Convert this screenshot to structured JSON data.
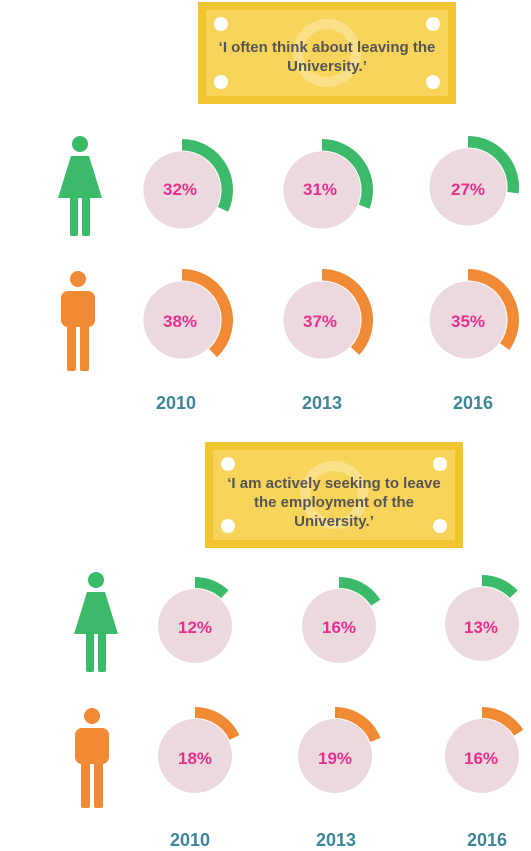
{
  "colors": {
    "female": "#3bba6a",
    "male": "#f08a35",
    "track": "#ecd9dd",
    "value_text": "#e62f8f",
    "year_text": "#3f8599",
    "banner_fill": "#f9d45a",
    "banner_edge": "#f1c432"
  },
  "icons": {
    "female": "female-person-icon",
    "male": "male-person-icon",
    "banner": "banknote-icon"
  },
  "chart_data": [
    {
      "type": "donut",
      "title_line1": "‘I often think about leaving the",
      "title_line2": "University.’",
      "categories": [
        "2010",
        "2013",
        "2016"
      ],
      "series": [
        {
          "group": "female",
          "values": [
            32,
            31,
            27
          ],
          "labels": [
            "32%",
            "31%",
            "27%"
          ]
        },
        {
          "group": "male",
          "values": [
            38,
            37,
            35
          ],
          "labels": [
            "38%",
            "37%",
            "35%"
          ]
        }
      ],
      "unit": "%"
    },
    {
      "type": "donut",
      "title_line1": "‘I am actively seeking to leave",
      "title_line2": "the employment of the",
      "title_line3": "University.’",
      "categories": [
        "2010",
        "2013",
        "2016"
      ],
      "series": [
        {
          "group": "female",
          "values": [
            12,
            16,
            13
          ],
          "labels": [
            "12%",
            "16%",
            "13%"
          ]
        },
        {
          "group": "male",
          "values": [
            18,
            19,
            16
          ],
          "labels": [
            "18%",
            "19%",
            "16%"
          ]
        }
      ],
      "unit": "%"
    }
  ]
}
